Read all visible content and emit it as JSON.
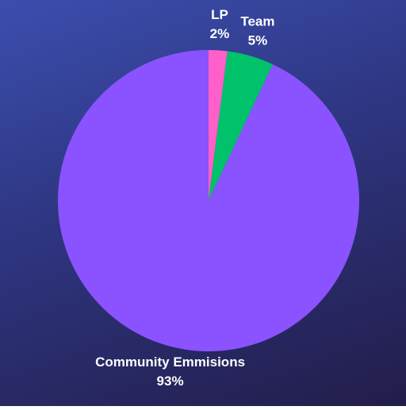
{
  "chart_data": {
    "type": "pie",
    "categories": [
      "LP",
      "Team",
      "Community Emmisions"
    ],
    "values": [
      2,
      5,
      93
    ],
    "value_labels": [
      "2%",
      "5%",
      "93%"
    ],
    "colors": [
      "#ff5fc8",
      "#00c26a",
      "#8b52ff"
    ]
  }
}
